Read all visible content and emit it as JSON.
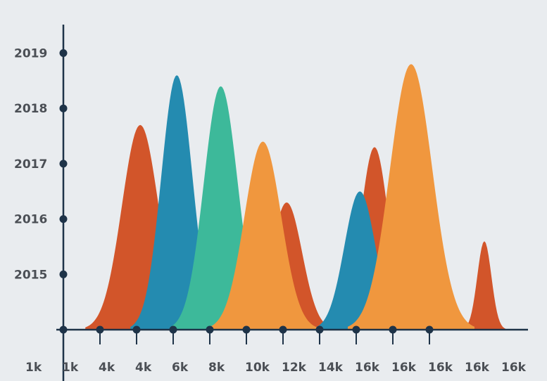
{
  "chart_data": {
    "type": "area",
    "title": "",
    "xlabel": "",
    "ylabel": "",
    "y_ticks": [
      "2015",
      "2016",
      "2017",
      "2018",
      "2019"
    ],
    "x_ticks": [
      "1k",
      "1k",
      "4k",
      "4k",
      "6k",
      "8k",
      "10k",
      "12k",
      "14k",
      "16k",
      "16k",
      "16k",
      "16k",
      "16k"
    ],
    "ylim": [
      2014,
      2019.5
    ],
    "grid": false,
    "legend": "none",
    "colors": {
      "background": "#e9ecef",
      "axis": "#1e3348",
      "red": "#d2552a",
      "blue": "#248bb0",
      "teal": "#3db99a",
      "orange": "#f0973e",
      "label": "#4b4f55"
    },
    "series": [
      {
        "color": "red",
        "peaks": [
          {
            "x": 4.2,
            "y": 2017.7
          },
          {
            "x": 12.2,
            "y": 2016.3
          },
          {
            "x": 17.0,
            "y": 2017.3
          },
          {
            "x": 23.0,
            "y": 2015.6
          }
        ]
      },
      {
        "color": "blue",
        "peaks": [
          {
            "x": 6.2,
            "y": 2018.6
          },
          {
            "x": 16.2,
            "y": 2016.5
          }
        ]
      },
      {
        "color": "teal",
        "peaks": [
          {
            "x": 8.6,
            "y": 2018.4
          }
        ]
      },
      {
        "color": "orange",
        "peaks": [
          {
            "x": 10.9,
            "y": 2017.4
          },
          {
            "x": 19.0,
            "y": 2018.8
          }
        ]
      }
    ]
  }
}
